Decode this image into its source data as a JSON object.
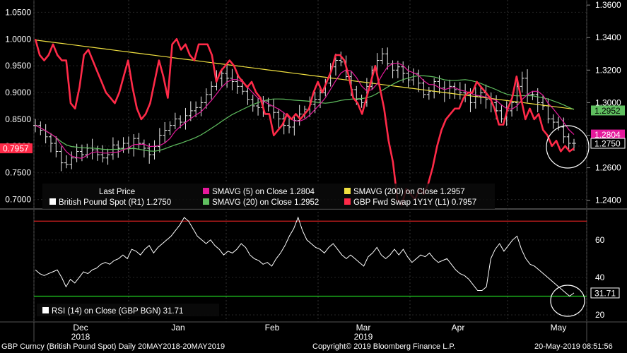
{
  "chart_data": {
    "type": "line",
    "upper_panel": {
      "left_axis_ticks": [
        "1.0500",
        "1.0000",
        "0.9500",
        "0.9000",
        "0.8500",
        "0.8000",
        "0.7500",
        "0.7000"
      ],
      "left_axis_range": [
        0.685,
        1.065
      ],
      "right_axis_ticks": [
        "1.3600",
        "1.3400",
        "1.3200",
        "1.3000",
        "1.2800",
        "1.2600",
        "1.2400"
      ],
      "right_axis_range": [
        1.2355,
        1.3605
      ],
      "series": [
        {
          "name": "British Pound Spot (R1)",
          "last": "1.2750",
          "color": "#ffffff",
          "style": "ohlc-bars",
          "values": [
            1.286,
            1.283,
            1.279,
            1.275,
            1.27,
            1.263,
            1.262,
            1.266,
            1.27,
            1.268,
            1.272,
            1.271,
            1.268,
            1.266,
            1.268,
            1.274,
            1.272,
            1.275,
            1.272,
            1.278,
            1.275,
            1.272,
            1.268,
            1.273,
            1.28,
            1.283,
            1.286,
            1.29,
            1.288,
            1.292,
            1.295,
            1.297,
            1.3,
            1.305,
            1.31,
            1.315,
            1.318,
            1.315,
            1.313,
            1.31,
            1.307,
            1.302,
            1.298,
            1.297,
            1.301,
            1.298,
            1.294,
            1.29,
            1.286,
            1.285,
            1.289,
            1.293,
            1.296,
            1.299,
            1.302,
            1.306,
            1.312,
            1.322,
            1.326,
            1.325,
            1.316,
            1.308,
            1.302,
            1.3,
            1.31,
            1.32,
            1.326,
            1.33,
            1.324,
            1.32,
            1.322,
            1.318,
            1.314,
            1.318,
            1.312,
            1.305,
            1.307,
            1.313,
            1.309,
            1.306,
            1.31,
            1.308,
            1.306,
            1.305,
            1.3,
            1.304,
            1.306,
            1.302,
            1.3,
            1.295,
            1.29,
            1.295,
            1.3,
            1.31,
            1.315,
            1.305,
            1.305,
            1.3,
            1.298,
            1.29,
            1.288,
            1.285,
            1.279,
            1.275,
            1.275
          ]
        },
        {
          "name": "SMAVG (5) on Close",
          "last": "1.2804",
          "color": "#e5199b",
          "style": "line"
        },
        {
          "name": "SMAVG (20) on Close",
          "last": "1.2952",
          "color": "#60c060",
          "style": "line"
        },
        {
          "name": "SMAVG (200) on Close",
          "last": "1.2957",
          "color": "#f0e040",
          "style": "line"
        },
        {
          "name": "GBP Fwd Swap 1Y1Y (L1)",
          "last": "0.7957",
          "color": "#ff2a48",
          "style": "line",
          "values": [
            1.0,
            0.97,
            0.96,
            0.97,
            0.99,
            0.97,
            0.96,
            0.96,
            0.88,
            0.87,
            0.91,
            0.97,
            0.98,
            0.96,
            0.94,
            0.92,
            0.9,
            0.89,
            0.88,
            0.9,
            0.93,
            0.96,
            0.91,
            0.87,
            0.85,
            0.86,
            0.88,
            0.92,
            0.96,
            0.93,
            0.89,
            0.99,
            1.0,
            0.98,
            0.99,
            0.97,
            0.96,
            0.99,
            0.99,
            0.99,
            0.97,
            0.92,
            0.94,
            0.95,
            0.96,
            0.95,
            0.93,
            0.92,
            0.91,
            0.92,
            0.9,
            0.89,
            0.86,
            0.86,
            0.82,
            0.83,
            0.84,
            0.86,
            0.85,
            0.86,
            0.85,
            0.86,
            0.87,
            0.9,
            0.92,
            0.9,
            0.92,
            0.94,
            0.97,
            0.97,
            0.96,
            0.93,
            0.89,
            0.88,
            0.86,
            0.89,
            0.92,
            0.95,
            0.91,
            0.87,
            0.81,
            0.77,
            0.7,
            0.69,
            0.72,
            0.71,
            0.7,
            0.72,
            0.71,
            0.73,
            0.76,
            0.8,
            0.83,
            0.85,
            0.86,
            0.87,
            0.87,
            0.89,
            0.9,
            0.9,
            0.92,
            0.91,
            0.9,
            0.89,
            0.87,
            0.84,
            0.84,
            0.87,
            0.89,
            0.93,
            0.89,
            0.85,
            0.87,
            0.85,
            0.86,
            0.83,
            0.82,
            0.8,
            0.81,
            0.79,
            0.8,
            0.79,
            0.7957
          ]
        }
      ],
      "annotations": {
        "price_axis_flags": [
          "1.2952",
          "1.2804",
          "1.2750"
        ],
        "left_axis_flag": "0.7957"
      },
      "legend_heading": "Last Price"
    },
    "lower_panel": {
      "type": "line",
      "series": [
        {
          "name": "RSI (14) on Close (GBP BGN)",
          "last": "31.71",
          "color": "#ffffff",
          "values": [
            44,
            42,
            41,
            42,
            43,
            44,
            40,
            35,
            39,
            37,
            40,
            43,
            42,
            44,
            45,
            47,
            48,
            47,
            49,
            50,
            52,
            50,
            55,
            54,
            52,
            55,
            57,
            53,
            56,
            58,
            60,
            62,
            65,
            68,
            72,
            70,
            66,
            62,
            60,
            58,
            60,
            57,
            55,
            52,
            54,
            53,
            55,
            58,
            56,
            52,
            50,
            49,
            47,
            48,
            46,
            50,
            53,
            57,
            62,
            66,
            72,
            65,
            60,
            58,
            56,
            55,
            53,
            56,
            58,
            55,
            52,
            50,
            52,
            50,
            48,
            46,
            51,
            53,
            56,
            52,
            50,
            52,
            55,
            52,
            55,
            51,
            48,
            50,
            52,
            51,
            53,
            50,
            48,
            49,
            50,
            47,
            44,
            42,
            41,
            39,
            36,
            33,
            33,
            35,
            50,
            55,
            58,
            54,
            57,
            60,
            62,
            55,
            50,
            47,
            46,
            44,
            42,
            40,
            38,
            36,
            34,
            32,
            30,
            31.71
          ]
        }
      ],
      "y_ticks": [
        "60",
        "40",
        "20"
      ],
      "y_range": [
        17,
        75
      ],
      "reference_lines": [
        {
          "value": 70,
          "color": "#d02020"
        },
        {
          "value": 30,
          "color": "#20d020"
        }
      ],
      "last_flag": "31.71"
    },
    "x_axis": {
      "month_labels": [
        "Dec",
        "Jan",
        "Feb",
        "Mar",
        "Apr",
        "May"
      ],
      "year_labels": [
        "2018",
        "2019"
      ]
    }
  },
  "legend": {
    "heading": "Last Price",
    "items": [
      {
        "label": "British Pound Spot  (R1) 1.2750",
        "color": "#ffffff"
      },
      {
        "label": "SMAVG (5)  on Close  1.2804",
        "color": "#e5199b"
      },
      {
        "label": "SMAVG (20)  on Close 1.2952",
        "color": "#60c060"
      },
      {
        "label": "SMAVG (200)  on Close     1.2957",
        "color": "#f0e040"
      },
      {
        "label": "GBP Fwd Swap 1Y1Y  (L1) 0.7957",
        "color": "#ff2a48"
      }
    ],
    "rsi_label": "RSI (14)  on Close (GBP BGN) 31.71"
  },
  "footer": {
    "left": "GBP Curncy (British Pound Spot)  Daily 20MAY2018-20MAY2019",
    "center": "Copyright© 2019 Bloomberg Finance L.P.",
    "right": "20-May-2019 08:51:56"
  }
}
